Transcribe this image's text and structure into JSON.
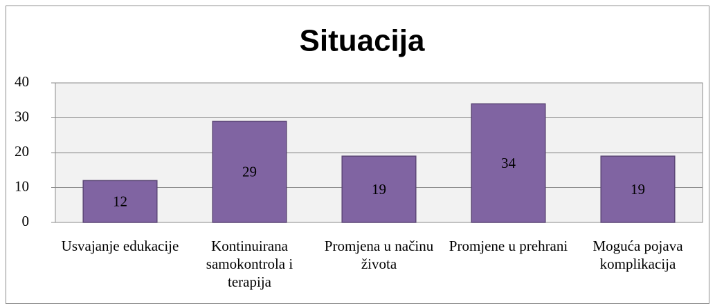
{
  "chart_data": {
    "type": "bar",
    "title": "Situacija",
    "categories": [
      "Usvajanje edukacije",
      "Kontinuirana samokontrola i terapija",
      "Promjena u načinu života",
      "Promjene u prehrani",
      "Moguća pojava komplikacija"
    ],
    "values": [
      12,
      29,
      19,
      34,
      19
    ],
    "color": "#8064a2",
    "ylim": [
      0,
      40
    ],
    "yticks": [
      0,
      10,
      20,
      30,
      40
    ],
    "grid": true
  }
}
